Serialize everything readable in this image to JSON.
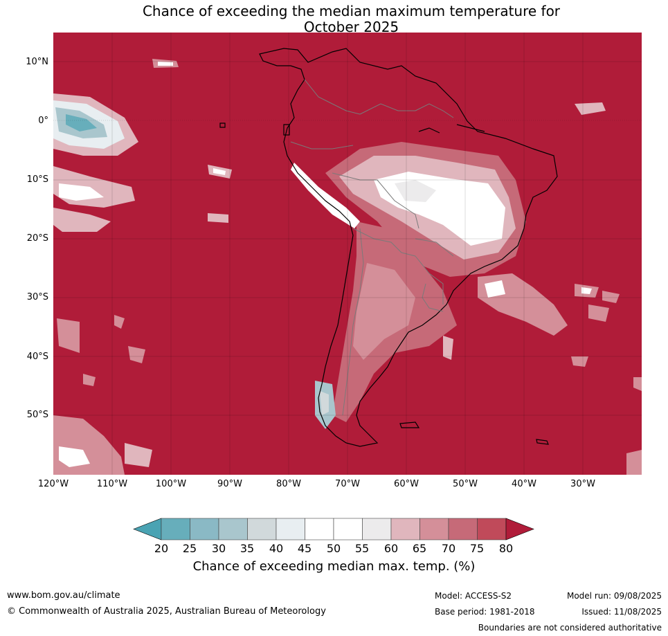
{
  "title": {
    "line1": "Chance of exceeding the median maximum temperature for",
    "line2": "October 2025"
  },
  "map": {
    "latitude_labels": [
      "10°N",
      "0°",
      "10°S",
      "20°S",
      "30°S",
      "40°S",
      "50°S"
    ],
    "longitude_labels": [
      "120°W",
      "110°W",
      "100°W",
      "90°W",
      "80°W",
      "70°W",
      "60°W",
      "50°W",
      "40°W",
      "30°W"
    ],
    "background_color": "#b01c39"
  },
  "colorbar": {
    "ticks": [
      "20",
      "25",
      "30",
      "35",
      "40",
      "45",
      "50",
      "55",
      "60",
      "65",
      "70",
      "75",
      "80"
    ],
    "colors": [
      "#67aebb",
      "#8ab9c5",
      "#a9c6cd",
      "#d1d9db",
      "#e8eef1",
      "#ffffff",
      "#ffffff",
      "#ecebec",
      "#e0b6bd",
      "#d48f99",
      "#c66a78",
      "#c04a5a"
    ],
    "under_color": "#4aa3b3",
    "over_color": "#b01c39",
    "label": "Chance of exceeding median max. temp. (%)"
  },
  "footer": {
    "website": "www.bom.gov.au/climate",
    "copyright": "© Commonwealth of Australia 2025, Australian Bureau of Meteorology",
    "model": "Model: ACCESS-S2",
    "base_period": "Base period: 1981-2018",
    "model_run": "Model run: 09/08/2025",
    "issued": "Issued: 11/08/2025",
    "disclaimer": "Boundaries are not considered authoritative"
  }
}
